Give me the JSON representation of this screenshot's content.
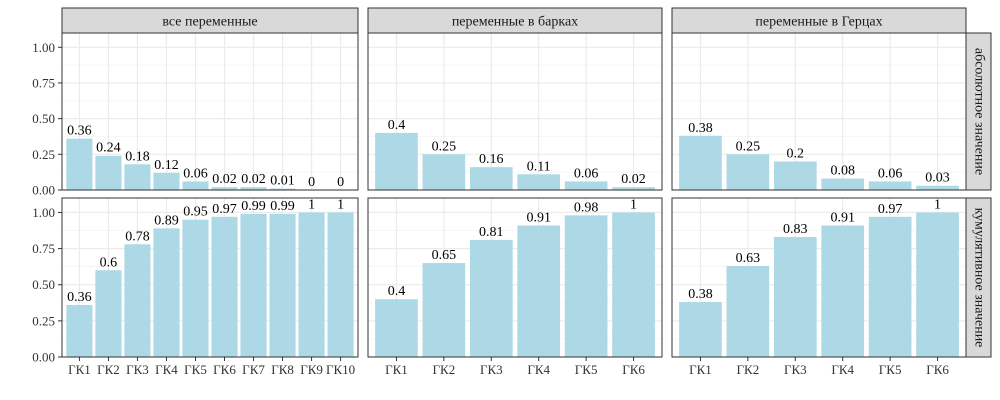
{
  "chart_data": {
    "type": "bar",
    "colors": {
      "bar": "#add8e6",
      "panel_border": "#333333",
      "strip_fill": "#d9d9d9",
      "grid": "#ebebeb"
    },
    "grid": true,
    "ylim": [
      0,
      1.1
    ],
    "y_ticks": [
      "0.00",
      "0.25",
      "0.50",
      "0.75",
      "1.00"
    ],
    "columns": [
      "все переменные",
      "переменные в барках",
      "переменные в Герцах"
    ],
    "rows": [
      "абсолютное значение",
      "кумулятивное значение"
    ],
    "panels": [
      {
        "column": 0,
        "row": 0,
        "categories": [
          "ГК1",
          "ГК2",
          "ГК3",
          "ГК4",
          "ГК5",
          "ГК6",
          "ГК7",
          "ГК8",
          "ГК9",
          "ГК10"
        ],
        "values": [
          0.36,
          0.24,
          0.18,
          0.12,
          0.06,
          0.02,
          0.02,
          0.01,
          0,
          0
        ],
        "labels": [
          "0.36",
          "0.24",
          "0.18",
          "0.12",
          "0.06",
          "0.02",
          "0.02",
          "0.01",
          "0",
          "0"
        ]
      },
      {
        "column": 1,
        "row": 0,
        "categories": [
          "ГК1",
          "ГК2",
          "ГК3",
          "ГК4",
          "ГК5",
          "ГК6"
        ],
        "values": [
          0.4,
          0.25,
          0.16,
          0.11,
          0.06,
          0.02
        ],
        "labels": [
          "0.4",
          "0.25",
          "0.16",
          "0.11",
          "0.06",
          "0.02"
        ]
      },
      {
        "column": 2,
        "row": 0,
        "categories": [
          "ГК1",
          "ГК2",
          "ГК3",
          "ГК4",
          "ГК5",
          "ГК6"
        ],
        "values": [
          0.38,
          0.25,
          0.2,
          0.08,
          0.06,
          0.03
        ],
        "labels": [
          "0.38",
          "0.25",
          "0.2",
          "0.08",
          "0.06",
          "0.03"
        ]
      },
      {
        "column": 0,
        "row": 1,
        "categories": [
          "ГК1",
          "ГК2",
          "ГК3",
          "ГК4",
          "ГК5",
          "ГК6",
          "ГК7",
          "ГК8",
          "ГК9",
          "ГК10"
        ],
        "values": [
          0.36,
          0.6,
          0.78,
          0.89,
          0.95,
          0.97,
          0.99,
          0.99,
          1,
          1
        ],
        "labels": [
          "0.36",
          "0.6",
          "0.78",
          "0.89",
          "0.95",
          "0.97",
          "0.99",
          "0.99",
          "1",
          "1"
        ]
      },
      {
        "column": 1,
        "row": 1,
        "categories": [
          "ГК1",
          "ГК2",
          "ГК3",
          "ГК4",
          "ГК5",
          "ГК6"
        ],
        "values": [
          0.4,
          0.65,
          0.81,
          0.91,
          0.98,
          1
        ],
        "labels": [
          "0.4",
          "0.65",
          "0.81",
          "0.91",
          "0.98",
          "1"
        ]
      },
      {
        "column": 2,
        "row": 1,
        "categories": [
          "ГК1",
          "ГК2",
          "ГК3",
          "ГК4",
          "ГК5",
          "ГК6"
        ],
        "values": [
          0.38,
          0.63,
          0.83,
          0.91,
          0.97,
          1
        ],
        "labels": [
          "0.38",
          "0.63",
          "0.83",
          "0.91",
          "0.97",
          "1"
        ]
      }
    ]
  }
}
